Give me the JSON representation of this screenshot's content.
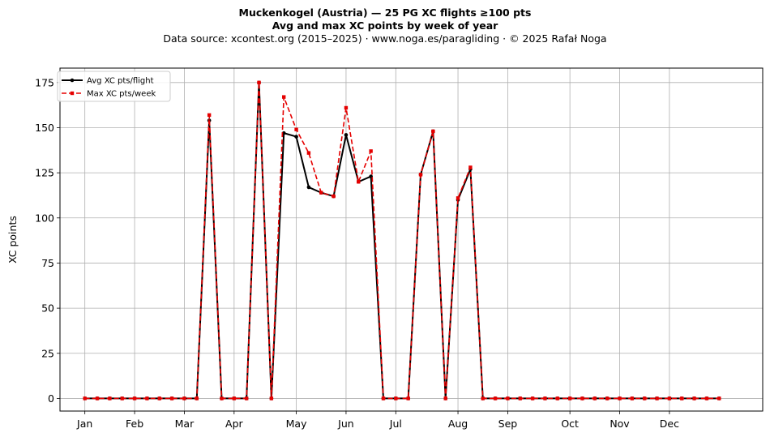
{
  "chart_data": {
    "type": "line",
    "title": "Muckenkogel (Austria)  —  25 PG XC flights ≥100 pts",
    "subtitle": "Avg and max XC points by week of year",
    "source": "Data source: xcontest.org (2015–2025)  ·  www.noga.es/paragliding  ·  © 2025 Rafał Noga",
    "xlabel": "",
    "ylabel": "XC points",
    "ylim": [
      -7,
      183
    ],
    "xlim": [
      -2,
      54.5
    ],
    "yticks": [
      0,
      25,
      50,
      75,
      100,
      125,
      150,
      175
    ],
    "xticks": [
      {
        "label": "Jan",
        "week": 0
      },
      {
        "label": "Feb",
        "week": 4
      },
      {
        "label": "Mar",
        "week": 8
      },
      {
        "label": "Apr",
        "week": 12
      },
      {
        "label": "May",
        "week": 17
      },
      {
        "label": "Jun",
        "week": 21
      },
      {
        "label": "Jul",
        "week": 25
      },
      {
        "label": "Aug",
        "week": 30
      },
      {
        "label": "Sep",
        "week": 34
      },
      {
        "label": "Oct",
        "week": 39
      },
      {
        "label": "Nov",
        "week": 43
      },
      {
        "label": "Dec",
        "week": 47
      }
    ],
    "grid": true,
    "legend": "top-left",
    "x": [
      0,
      1,
      2,
      3,
      4,
      5,
      6,
      7,
      8,
      9,
      10,
      11,
      12,
      13,
      14,
      15,
      16,
      17,
      18,
      19,
      20,
      21,
      22,
      23,
      24,
      25,
      26,
      27,
      28,
      29,
      30,
      31,
      32,
      33,
      34,
      35,
      36,
      37,
      38,
      39,
      40,
      41,
      42,
      43,
      44,
      45,
      46,
      47,
      48,
      49,
      50,
      51
    ],
    "series": [
      {
        "name": "Avg XC pts/flight",
        "color": "#000000",
        "style": "solid",
        "marker": "circle",
        "values": [
          0,
          0,
          0,
          0,
          0,
          0,
          0,
          0,
          0,
          0,
          154,
          0,
          0,
          0,
          175,
          0,
          147,
          145,
          117,
          114,
          112,
          146,
          120,
          123,
          0,
          0,
          0,
          124,
          148,
          0,
          110,
          127,
          0,
          0,
          0,
          0,
          0,
          0,
          0,
          0,
          0,
          0,
          0,
          0,
          0,
          0,
          0,
          0,
          0,
          0,
          0,
          0
        ]
      },
      {
        "name": "Max XC pts/week",
        "color": "#e50000",
        "style": "dashed",
        "marker": "square",
        "values": [
          0,
          0,
          0,
          0,
          0,
          0,
          0,
          0,
          0,
          0,
          157,
          0,
          0,
          0,
          175,
          0,
          167,
          149,
          136,
          114,
          112,
          161,
          120,
          137,
          0,
          0,
          0,
          124,
          148,
          0,
          111,
          128,
          0,
          0,
          0,
          0,
          0,
          0,
          0,
          0,
          0,
          0,
          0,
          0,
          0,
          0,
          0,
          0,
          0,
          0,
          0,
          0
        ]
      }
    ]
  }
}
